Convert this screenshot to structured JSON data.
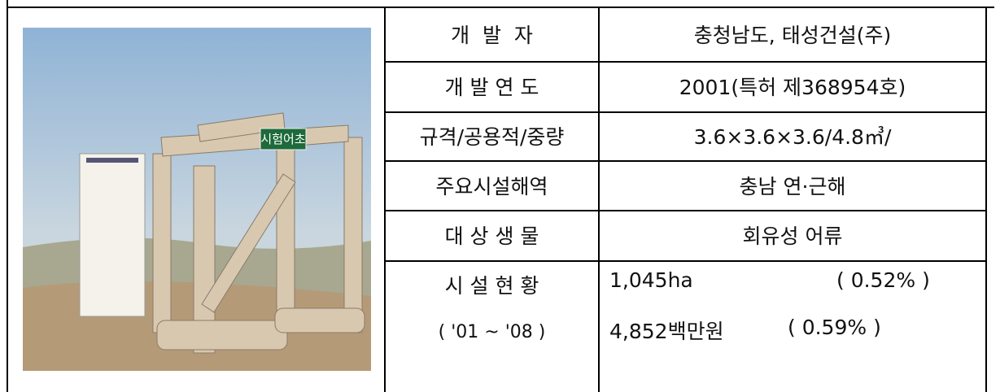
{
  "photo": {
    "sign": "시험어초"
  },
  "table": {
    "rows": [
      [
        "개  발  자",
        "충청남도, 태성건설(주)"
      ],
      [
        "개 발 연 도",
        "2001(특허 제368954호)"
      ],
      [
        "규격/공용적/중량",
        "3.6×3.6×3.6/4.8㎥/"
      ],
      [
        "주요시설해역",
        "충남 연·근해"
      ],
      [
        "대 상 생 물",
        "회유성 어류"
      ]
    ],
    "status": {
      "label": [
        "시 설 현 황",
        "( '01 ~ '08 )"
      ],
      "lines": [
        {
          "amount": "1,045ha",
          "share": "( 0.52% )"
        },
        {
          "amount": "4,852백만원",
          "share": "( 0.59% )"
        }
      ]
    }
  }
}
